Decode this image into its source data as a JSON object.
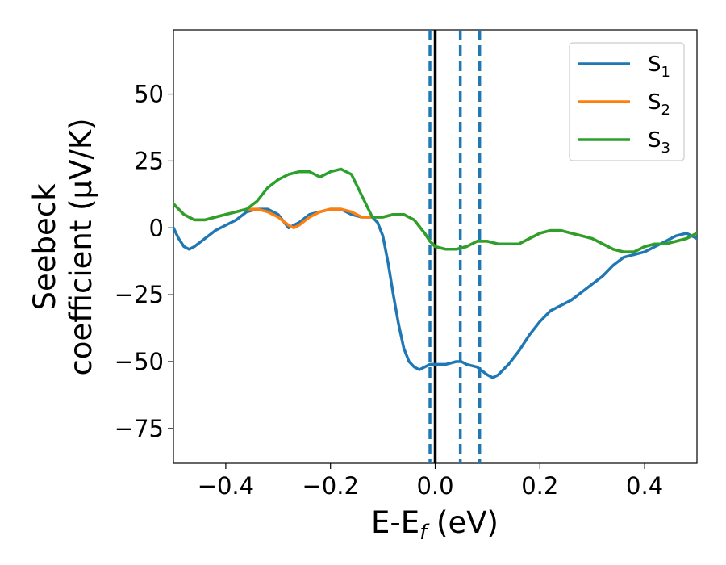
{
  "chart_data": {
    "type": "line",
    "title": "",
    "xlabel": {
      "main": "E-E",
      "sub": "f",
      "unit": " (eV)"
    },
    "ylabel": {
      "line1": "Seebeck",
      "line2": "coefficient  (μV/K)"
    },
    "xlim": [
      -0.5,
      0.5
    ],
    "ylim": [
      -88,
      74
    ],
    "xticks": [
      -0.4,
      -0.2,
      0.0,
      0.2,
      0.4
    ],
    "xtick_labels": [
      "−0.4",
      "−0.2",
      "0.0",
      "0.2",
      "0.4"
    ],
    "yticks": [
      50,
      25,
      0,
      -25,
      -50,
      -75
    ],
    "ytick_labels": [
      "50",
      "25",
      "0",
      "−25",
      "−50",
      "−75"
    ],
    "grid": false,
    "legend_position": "top-right",
    "vertical_lines": [
      {
        "x": 0.0,
        "style": "solid",
        "color": "#000000"
      },
      {
        "x": -0.01,
        "style": "dashed",
        "color": "#1f77b4"
      },
      {
        "x": 0.048,
        "style": "dashed",
        "color": "#1f77b4"
      },
      {
        "x": 0.085,
        "style": "dashed",
        "color": "#1f77b4"
      }
    ],
    "series": [
      {
        "name": "S",
        "sub": "1",
        "color": "#1f77b4",
        "x": [
          -0.5,
          -0.49,
          -0.48,
          -0.47,
          -0.46,
          -0.44,
          -0.42,
          -0.4,
          -0.38,
          -0.36,
          -0.34,
          -0.32,
          -0.3,
          -0.28,
          -0.26,
          -0.24,
          -0.22,
          -0.2,
          -0.18,
          -0.16,
          -0.14,
          -0.12,
          -0.11,
          -0.1,
          -0.09,
          -0.08,
          -0.07,
          -0.06,
          -0.05,
          -0.04,
          -0.03,
          -0.02,
          -0.01,
          0.0,
          0.02,
          0.04,
          0.05,
          0.06,
          0.08,
          0.1,
          0.11,
          0.12,
          0.14,
          0.16,
          0.18,
          0.2,
          0.22,
          0.24,
          0.26,
          0.28,
          0.3,
          0.32,
          0.34,
          0.36,
          0.38,
          0.4,
          0.42,
          0.44,
          0.46,
          0.48,
          0.5
        ],
        "y": [
          0,
          -4,
          -7,
          -8,
          -7,
          -4,
          -1,
          1,
          3,
          6,
          7,
          7,
          5,
          0,
          2,
          5,
          6,
          7,
          7,
          5,
          4,
          4,
          2,
          -3,
          -13,
          -25,
          -36,
          -45,
          -50,
          -52,
          -53,
          -52,
          -51,
          -51,
          -51,
          -50,
          -50,
          -51,
          -52,
          -55,
          -56,
          -55,
          -51,
          -46,
          -40,
          -35,
          -31,
          -29,
          -27,
          -24,
          -21,
          -18,
          -14,
          -11,
          -10,
          -9,
          -7,
          -5,
          -3,
          -2,
          -4
        ]
      },
      {
        "name": "S",
        "sub": "2",
        "color": "#ff7f0e",
        "x": [
          -0.5,
          -0.48,
          -0.46,
          -0.44,
          -0.42,
          -0.4,
          -0.38,
          -0.36,
          -0.34,
          -0.32,
          -0.3,
          -0.28,
          -0.27,
          -0.26,
          -0.24,
          -0.22,
          -0.2,
          -0.18,
          -0.16,
          -0.14,
          -0.12,
          -0.1,
          -0.08,
          -0.06,
          -0.04,
          -0.02,
          -0.01,
          0.0,
          0.02,
          0.04,
          0.06,
          0.08,
          0.1,
          0.12,
          0.14,
          0.16,
          0.18,
          0.2,
          0.22,
          0.24,
          0.26,
          0.28,
          0.3,
          0.32,
          0.34,
          0.36,
          0.38,
          0.4,
          0.42,
          0.44,
          0.46,
          0.48,
          0.5
        ],
        "y": [
          9,
          5,
          3,
          3,
          4,
          5,
          6,
          7,
          7,
          6,
          4,
          1,
          0,
          1,
          4,
          6,
          7,
          7,
          6,
          4,
          4,
          4,
          5,
          5,
          3,
          -2,
          -5,
          -7,
          -8,
          -8,
          -7,
          -5,
          -5,
          -6,
          -6,
          -6,
          -4,
          -2,
          -1,
          -1,
          -2,
          -3,
          -4,
          -6,
          -8,
          -9,
          -9,
          -7,
          -6,
          -6,
          -5,
          -4,
          -2
        ]
      },
      {
        "name": "S",
        "sub": "3",
        "color": "#2ca02c",
        "x": [
          -0.5,
          -0.48,
          -0.46,
          -0.44,
          -0.42,
          -0.4,
          -0.38,
          -0.36,
          -0.34,
          -0.32,
          -0.3,
          -0.28,
          -0.26,
          -0.24,
          -0.22,
          -0.2,
          -0.18,
          -0.16,
          -0.14,
          -0.13,
          -0.12,
          -0.1,
          -0.08,
          -0.06,
          -0.04,
          -0.02,
          -0.01,
          0.0,
          0.02,
          0.04,
          0.06,
          0.08,
          0.1,
          0.12,
          0.14,
          0.16,
          0.18,
          0.2,
          0.22,
          0.24,
          0.26,
          0.28,
          0.3,
          0.32,
          0.34,
          0.36,
          0.38,
          0.4,
          0.42,
          0.44,
          0.46,
          0.48,
          0.5
        ],
        "y": [
          9,
          5,
          3,
          3,
          4,
          5,
          6,
          7,
          10,
          15,
          18,
          20,
          21,
          21,
          19,
          21,
          22,
          20,
          12,
          8,
          4,
          4,
          5,
          5,
          3,
          -2,
          -5,
          -7,
          -8,
          -8,
          -7,
          -5,
          -5,
          -6,
          -6,
          -6,
          -4,
          -2,
          -1,
          -1,
          -2,
          -3,
          -4,
          -6,
          -8,
          -9,
          -9,
          -7,
          -6,
          -6,
          -5,
          -4,
          -2
        ]
      }
    ]
  }
}
